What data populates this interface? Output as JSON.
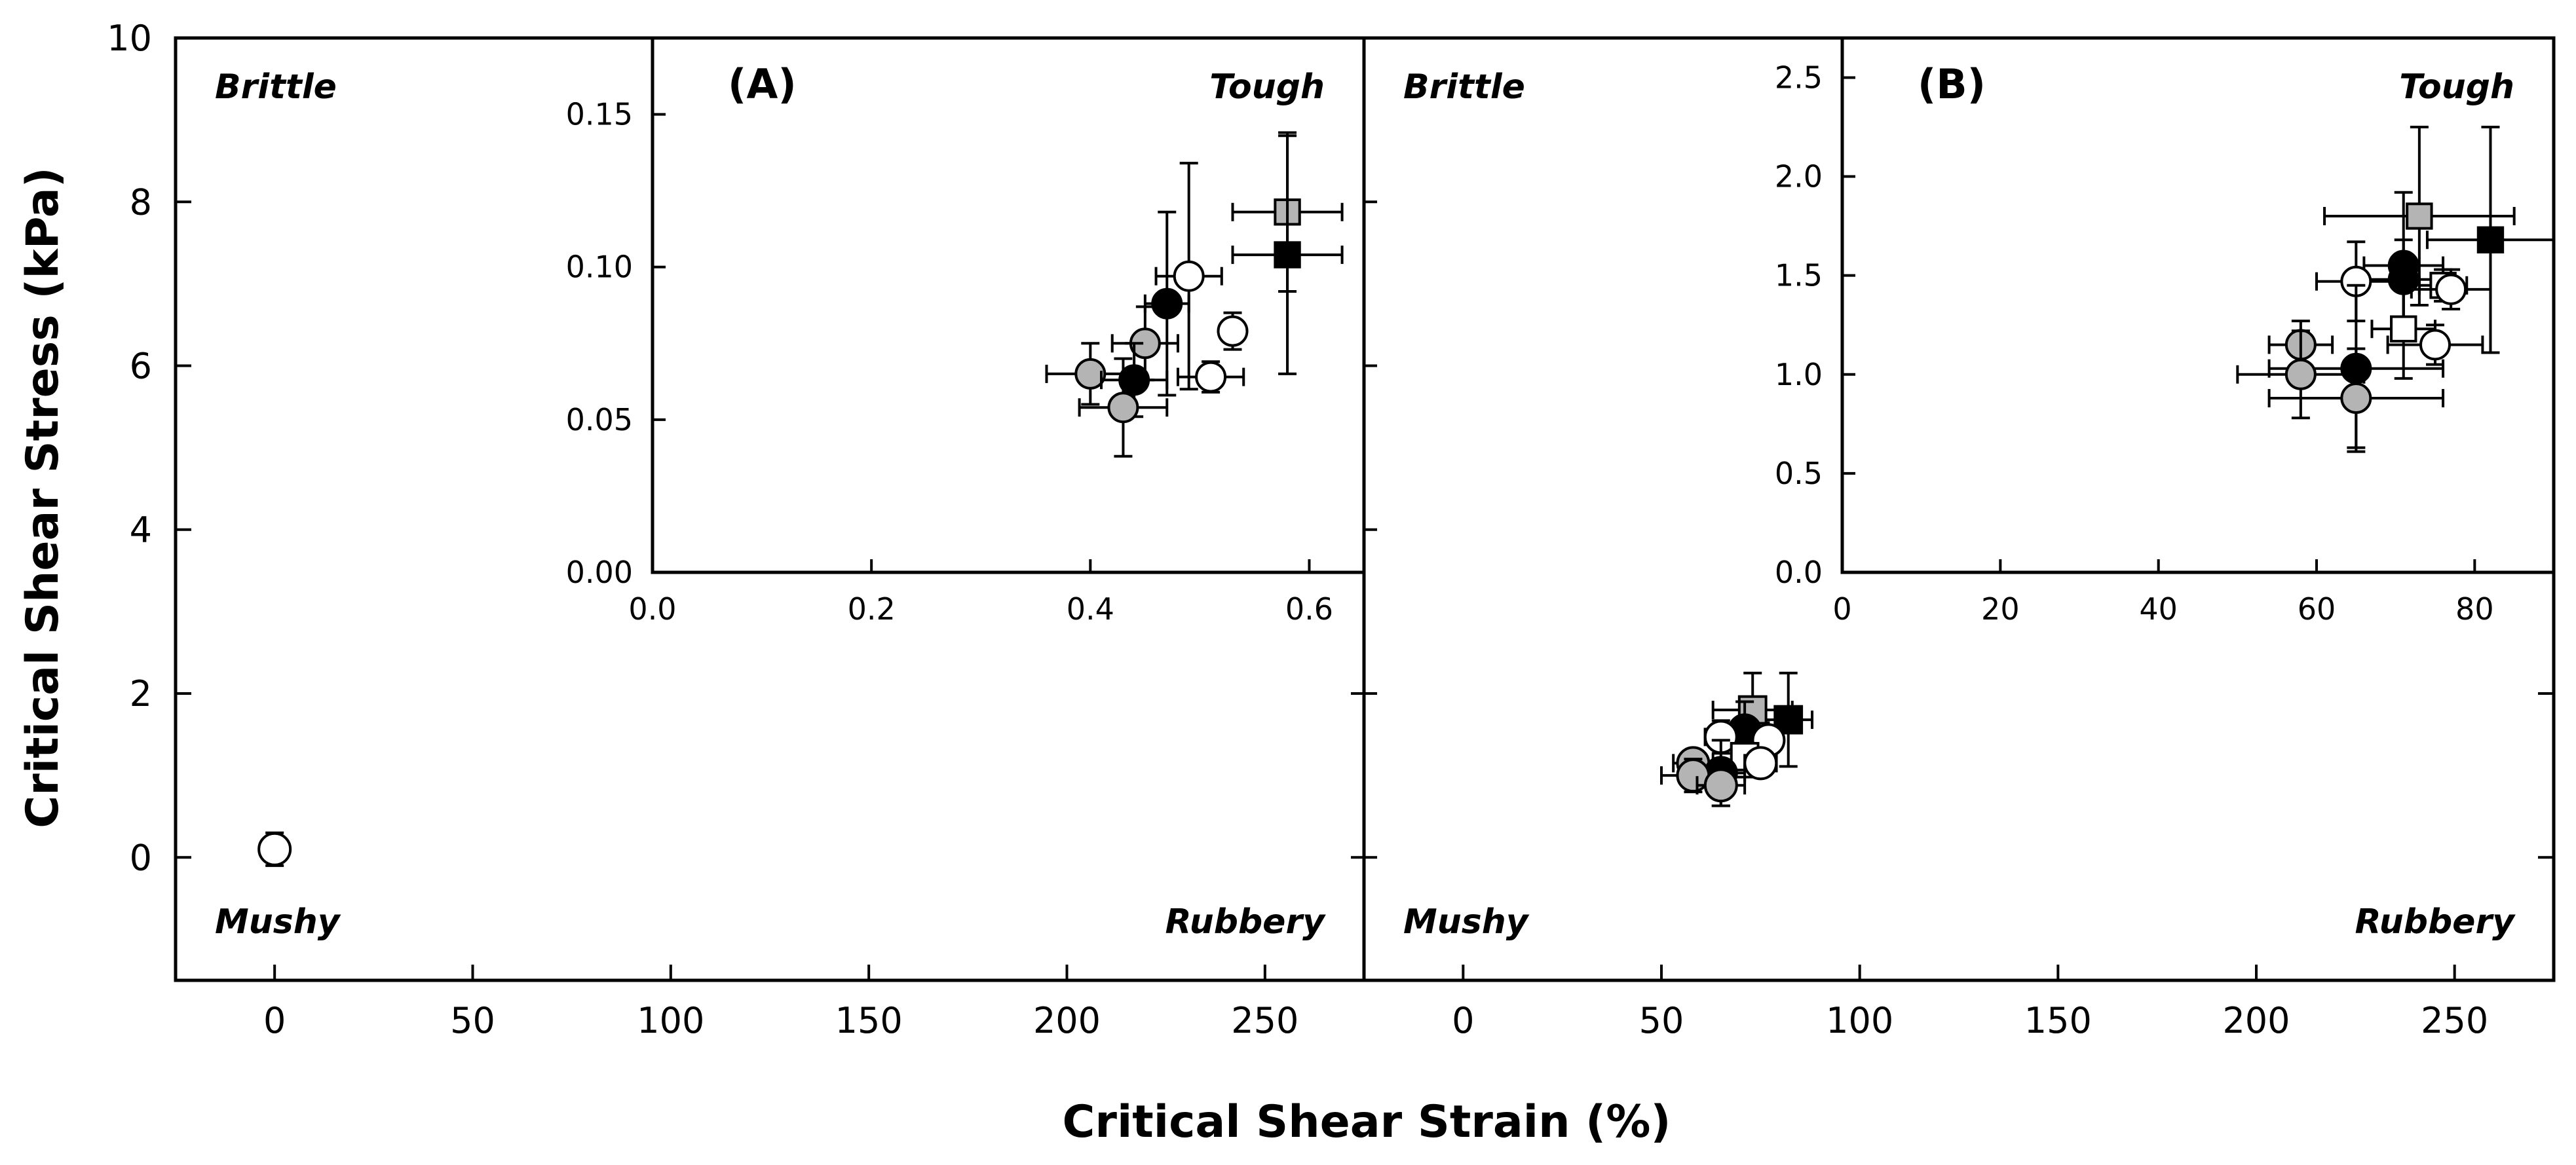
{
  "chart_data": {
    "type": "scatter",
    "x_axis_title": "Critical Shear Strain (%)",
    "y_axis_title": "Critical Shear Stress (kPa)",
    "quadrant_labels": {
      "top_left": "Brittle",
      "top_right": "Tough",
      "bottom_left": "Mushy",
      "bottom_right": "Rubbery"
    },
    "main_y_axis": {
      "range": [
        -1.5,
        10
      ],
      "ticks": [
        0,
        2,
        4,
        6,
        8,
        10
      ],
      "tick_labels": [
        "0",
        "2",
        "4",
        "6",
        "8",
        "10"
      ]
    },
    "panels": [
      {
        "id": "A",
        "tag": "(A)",
        "x_range": [
          -25,
          275
        ],
        "x_ticks": [
          0,
          50,
          100,
          150,
          200,
          250
        ],
        "x_tick_labels": [
          "0",
          "50",
          "100",
          "150",
          "200",
          "250"
        ],
        "points": [
          {
            "x": 0,
            "y": 0.1,
            "xerr": 1.5,
            "yerr": 0.2,
            "marker": "circle",
            "fill": "white"
          }
        ],
        "inset": {
          "x_range": [
            0,
            0.65
          ],
          "y_range": [
            0,
            0.175
          ],
          "x_ticks": [
            0,
            0.2,
            0.4,
            0.6
          ],
          "x_tick_labels": [
            "0.0",
            "0.2",
            "0.4",
            "0.6"
          ],
          "y_ticks": [
            0,
            0.05,
            0.1,
            0.15
          ],
          "y_tick_labels": [
            "0.00",
            "0.05",
            "0.10",
            "0.15"
          ],
          "points": [
            {
              "x": 0.58,
              "y": 0.118,
              "xerr": 0.05,
              "yerr": 0.026,
              "marker": "square",
              "fill": "gray"
            },
            {
              "x": 0.58,
              "y": 0.104,
              "xerr": 0.05,
              "yerr": 0.039,
              "marker": "square",
              "fill": "black"
            },
            {
              "x": 0.49,
              "y": 0.097,
              "xerr": 0.03,
              "yerr": 0.037,
              "marker": "circle",
              "fill": "white"
            },
            {
              "x": 0.47,
              "y": 0.088,
              "xerr": 0.02,
              "yerr": 0.03,
              "marker": "circle",
              "fill": "black"
            },
            {
              "x": 0.53,
              "y": 0.079,
              "xerr": 0.01,
              "yerr": 0.006,
              "marker": "circle",
              "fill": "white"
            },
            {
              "x": 0.45,
              "y": 0.075,
              "xerr": 0.03,
              "yerr": 0.012,
              "marker": "circle",
              "fill": "gray"
            },
            {
              "x": 0.4,
              "y": 0.065,
              "xerr": 0.04,
              "yerr": 0.01,
              "marker": "circle",
              "fill": "gray"
            },
            {
              "x": 0.51,
              "y": 0.064,
              "xerr": 0.03,
              "yerr": 0.005,
              "marker": "circle",
              "fill": "white"
            },
            {
              "x": 0.44,
              "y": 0.063,
              "xerr": 0.03,
              "yerr": 0.012,
              "marker": "circle",
              "fill": "black"
            },
            {
              "x": 0.43,
              "y": 0.054,
              "xerr": 0.04,
              "yerr": 0.016,
              "marker": "circle",
              "fill": "gray"
            }
          ]
        }
      },
      {
        "id": "B",
        "tag": "(B)",
        "x_range": [
          -25,
          275
        ],
        "x_ticks": [
          0,
          50,
          100,
          150,
          200,
          250
        ],
        "x_tick_labels": [
          "0",
          "50",
          "100",
          "150",
          "200",
          "250"
        ],
        "points": [
          {
            "x": 82,
            "y": 1.68,
            "xerr": 6,
            "yerr": 0.57,
            "marker": "square",
            "fill": "black"
          },
          {
            "x": 73,
            "y": 1.8,
            "xerr": 10,
            "yerr": 0.45,
            "marker": "square",
            "fill": "gray"
          },
          {
            "x": 71,
            "y": 1.55,
            "xerr": 6,
            "yerr": 0.35,
            "marker": "circle",
            "fill": "black"
          },
          {
            "x": 65,
            "y": 1.47,
            "xerr": 4,
            "yerr": 0.2,
            "marker": "circle",
            "fill": "white"
          },
          {
            "x": 77,
            "y": 1.43,
            "xerr": 3,
            "yerr": 0.15,
            "marker": "circle",
            "fill": "white"
          },
          {
            "x": 71,
            "y": 1.23,
            "xerr": 3,
            "yerr": 0.25,
            "marker": "square",
            "fill": "white"
          },
          {
            "x": 75,
            "y": 1.15,
            "xerr": 4,
            "yerr": 0.15,
            "marker": "circle",
            "fill": "white"
          },
          {
            "x": 58,
            "y": 1.15,
            "xerr": 5,
            "yerr": 0.12,
            "marker": "circle",
            "fill": "gray"
          },
          {
            "x": 65,
            "y": 1.03,
            "xerr": 6,
            "yerr": 0.4,
            "marker": "circle",
            "fill": "black"
          },
          {
            "x": 58,
            "y": 1.0,
            "xerr": 8,
            "yerr": 0.2,
            "marker": "circle",
            "fill": "gray"
          },
          {
            "x": 65,
            "y": 0.88,
            "xerr": 6,
            "yerr": 0.25,
            "marker": "circle",
            "fill": "gray"
          }
        ],
        "inset": {
          "x_range": [
            0,
            90
          ],
          "y_range": [
            0,
            2.7
          ],
          "x_ticks": [
            0,
            20,
            40,
            60,
            80
          ],
          "x_tick_labels": [
            "0",
            "20",
            "40",
            "60",
            "80"
          ],
          "y_ticks": [
            0,
            0.5,
            1.0,
            1.5,
            2.0,
            2.5
          ],
          "y_tick_labels": [
            "0.0",
            "0.5",
            "1.0",
            "1.5",
            "2.0",
            "2.5"
          ],
          "points": [
            {
              "x": 73,
              "y": 1.8,
              "xerr": 12,
              "yerr": 0.45,
              "marker": "square",
              "fill": "gray"
            },
            {
              "x": 82,
              "y": 1.68,
              "xerr": 8,
              "yerr": 0.57,
              "marker": "square",
              "fill": "black"
            },
            {
              "x": 71,
              "y": 1.55,
              "xerr": 5,
              "yerr": 0.37,
              "marker": "circle",
              "fill": "black"
            },
            {
              "x": 71,
              "y": 1.48,
              "xerr": 5,
              "yerr": 0.2,
              "marker": "circle",
              "fill": "black"
            },
            {
              "x": 65,
              "y": 1.47,
              "xerr": 5,
              "yerr": 0.2,
              "marker": "circle",
              "fill": "white"
            },
            {
              "x": 76,
              "y": 1.45,
              "xerr": 3,
              "yerr": 0.08,
              "marker": "square",
              "fill": "white"
            },
            {
              "x": 77,
              "y": 1.43,
              "xerr": 5,
              "yerr": 0.1,
              "marker": "circle",
              "fill": "white"
            },
            {
              "x": 71,
              "y": 1.23,
              "xerr": 4,
              "yerr": 0.25,
              "marker": "square",
              "fill": "white"
            },
            {
              "x": 75,
              "y": 1.15,
              "xerr": 6,
              "yerr": 0.1,
              "marker": "circle",
              "fill": "white"
            },
            {
              "x": 58,
              "y": 1.15,
              "xerr": 4,
              "yerr": 0.12,
              "marker": "circle",
              "fill": "gray"
            },
            {
              "x": 65,
              "y": 1.03,
              "xerr": 11,
              "yerr": 0.42,
              "marker": "circle",
              "fill": "black"
            },
            {
              "x": 58,
              "y": 1.0,
              "xerr": 8,
              "yerr": 0.22,
              "marker": "circle",
              "fill": "gray"
            },
            {
              "x": 65,
              "y": 0.88,
              "xerr": 11,
              "yerr": 0.25,
              "marker": "circle",
              "fill": "gray"
            }
          ]
        }
      }
    ]
  }
}
